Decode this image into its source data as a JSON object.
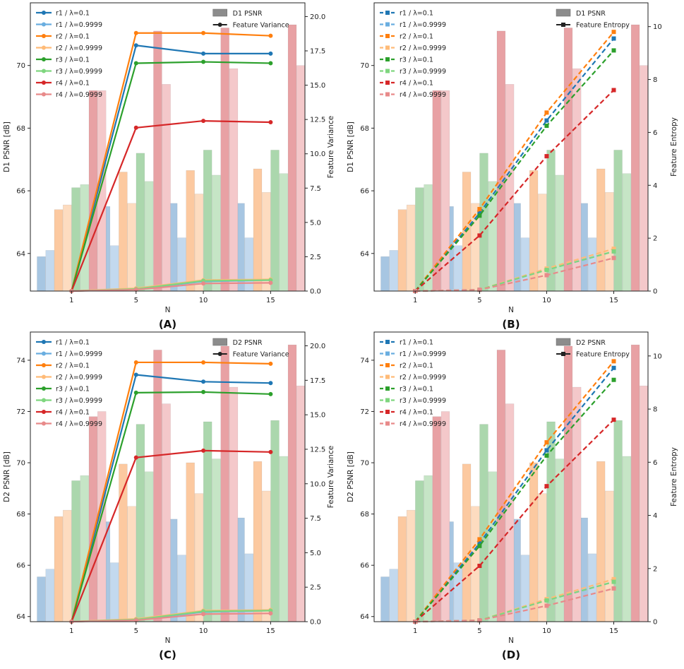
{
  "figure": {
    "title": ""
  },
  "chart_data": [
    {
      "panel_label": "(A)",
      "type": "bar+line",
      "left_metric": "D1",
      "right_kind": "variance",
      "xlabel": "N",
      "ylabel": "D1 PSNR [dB]",
      "ylabel_right": "Feature Variance",
      "categories": [
        "1",
        "5",
        "10",
        "15"
      ],
      "ylim": [
        62.8,
        72.0
      ],
      "yticks": [
        64,
        66,
        68,
        70
      ],
      "ylim_right": [
        0,
        21
      ],
      "yticks_right": [
        "0.0",
        "2.5",
        "5.0",
        "7.5",
        "10.0",
        "12.5",
        "15.0",
        "17.5",
        "20.0"
      ],
      "legend_left": [
        "r1 / λ=0.1",
        "r1 / λ=0.9999",
        "r2 / λ=0.1",
        "r2 / λ=0.9999",
        "r3 / λ=0.1",
        "r3 / λ=0.9999",
        "r4 / λ=0.1",
        "r4 / λ=0.9999"
      ],
      "legend_right": [
        "D1 PSNR",
        "Feature Variance"
      ],
      "bar_series": [
        {
          "name": "r1 / λ=0.1",
          "values": [
            63.9,
            65.5,
            65.6,
            65.6
          ]
        },
        {
          "name": "r1 / λ=0.9999",
          "values": [
            64.1,
            64.25,
            64.5,
            64.5
          ]
        },
        {
          "name": "r2 / λ=0.1",
          "values": [
            65.4,
            66.6,
            66.65,
            66.7
          ]
        },
        {
          "name": "r2 / λ=0.9999",
          "values": [
            65.55,
            65.6,
            65.9,
            65.95
          ]
        },
        {
          "name": "r3 / λ=0.1",
          "values": [
            66.1,
            67.2,
            67.3,
            67.3
          ]
        },
        {
          "name": "r3 / λ=0.9999",
          "values": [
            66.2,
            66.3,
            66.5,
            66.55
          ]
        },
        {
          "name": "r4 / λ=0.1",
          "values": [
            69.2,
            71.1,
            71.2,
            71.3
          ]
        },
        {
          "name": "r4 / λ=0.9999",
          "values": [
            69.2,
            69.4,
            69.9,
            70.0
          ]
        }
      ],
      "line_series": [
        {
          "name": "r1 / λ=0.1",
          "values": [
            0,
            17.9,
            17.3,
            17.3
          ]
        },
        {
          "name": "r1 / λ=0.9999",
          "values": [
            0,
            0.15,
            0.7,
            0.8
          ]
        },
        {
          "name": "r2 / λ=0.1",
          "values": [
            0,
            18.8,
            18.8,
            18.6
          ]
        },
        {
          "name": "r2 / λ=0.9999",
          "values": [
            0,
            0.2,
            0.8,
            0.85
          ]
        },
        {
          "name": "r3 / λ=0.1",
          "values": [
            0,
            16.6,
            16.7,
            16.6
          ]
        },
        {
          "name": "r3 / λ=0.9999",
          "values": [
            0,
            0.15,
            0.75,
            0.8
          ]
        },
        {
          "name": "r4 / λ=0.1",
          "values": [
            0,
            11.9,
            12.4,
            12.3
          ]
        },
        {
          "name": "r4 / λ=0.9999",
          "values": [
            0,
            0.1,
            0.55,
            0.6
          ]
        }
      ]
    },
    {
      "panel_label": "(B)",
      "type": "bar+line",
      "left_metric": "D1",
      "right_kind": "entropy",
      "xlabel": "N",
      "ylabel": "D1 PSNR [dB]",
      "ylabel_right": "Feature Entropy",
      "categories": [
        "1",
        "5",
        "10",
        "15"
      ],
      "ylim": [
        62.8,
        72.0
      ],
      "yticks": [
        64,
        66,
        68,
        70
      ],
      "ylim_right": [
        0,
        10.9
      ],
      "yticks_right": [
        "0",
        "2",
        "4",
        "6",
        "8",
        "10"
      ],
      "legend_left": [
        "r1 / λ=0.1",
        "r1 / λ=0.9999",
        "r2 / λ=0.1",
        "r2 / λ=0.9999",
        "r3 / λ=0.1",
        "r3 / λ=0.9999",
        "r4 / λ=0.1",
        "r4 / λ=0.9999"
      ],
      "legend_right": [
        "D1 PSNR",
        "Feature Entropy"
      ],
      "bar_series": [
        {
          "name": "r1 / λ=0.1",
          "values": [
            63.9,
            65.5,
            65.6,
            65.6
          ]
        },
        {
          "name": "r1 / λ=0.9999",
          "values": [
            64.1,
            64.25,
            64.5,
            64.5
          ]
        },
        {
          "name": "r2 / λ=0.1",
          "values": [
            65.4,
            66.6,
            66.65,
            66.7
          ]
        },
        {
          "name": "r2 / λ=0.9999",
          "values": [
            65.55,
            65.6,
            65.9,
            65.95
          ]
        },
        {
          "name": "r3 / λ=0.1",
          "values": [
            66.1,
            67.2,
            67.3,
            67.3
          ]
        },
        {
          "name": "r3 / λ=0.9999",
          "values": [
            66.2,
            66.3,
            66.5,
            66.55
          ]
        },
        {
          "name": "r4 / λ=0.1",
          "values": [
            69.2,
            71.1,
            71.2,
            71.3
          ]
        },
        {
          "name": "r4 / λ=0.9999",
          "values": [
            69.2,
            69.4,
            69.9,
            70.0
          ]
        }
      ],
      "line_series": [
        {
          "name": "r1 / λ=0.1",
          "values": [
            0,
            2.95,
            6.45,
            9.55
          ]
        },
        {
          "name": "r1 / λ=0.9999",
          "values": [
            0,
            0.05,
            0.8,
            1.5
          ]
        },
        {
          "name": "r2 / λ=0.1",
          "values": [
            0,
            3.1,
            6.75,
            9.8
          ]
        },
        {
          "name": "r2 / λ=0.9999",
          "values": [
            0,
            0.05,
            0.85,
            1.6
          ]
        },
        {
          "name": "r3 / λ=0.1",
          "values": [
            0,
            2.85,
            6.25,
            9.1
          ]
        },
        {
          "name": "r3 / λ=0.9999",
          "values": [
            0,
            0.05,
            0.8,
            1.5
          ]
        },
        {
          "name": "r4 / λ=0.1",
          "values": [
            0,
            2.1,
            5.1,
            7.6
          ]
        },
        {
          "name": "r4 / λ=0.9999",
          "values": [
            0,
            0.05,
            0.6,
            1.25
          ]
        }
      ]
    },
    {
      "panel_label": "(C)",
      "type": "bar+line",
      "left_metric": "D2",
      "right_kind": "variance",
      "xlabel": "N",
      "ylabel": "D2 PSNR [dB]",
      "ylabel_right": "Feature Variance",
      "categories": [
        "1",
        "5",
        "10",
        "15"
      ],
      "ylim": [
        63.8,
        75.1
      ],
      "yticks": [
        64,
        66,
        68,
        70,
        72,
        74
      ],
      "ylim_right": [
        0,
        21
      ],
      "yticks_right": [
        "0.0",
        "2.5",
        "5.0",
        "7.5",
        "10.0",
        "12.5",
        "15.0",
        "17.5",
        "20.0"
      ],
      "legend_left": [
        "r1 / λ=0.1",
        "r1 / λ=0.9999",
        "r2 / λ=0.1",
        "r2 / λ=0.9999",
        "r3 / λ=0.1",
        "r3 / λ=0.9999",
        "r4 / λ=0.1",
        "r4 / λ=0.9999"
      ],
      "legend_right": [
        "D2 PSNR",
        "Feature Variance"
      ],
      "bar_series": [
        {
          "name": "r1 / λ=0.1",
          "values": [
            65.55,
            67.7,
            67.8,
            67.85
          ]
        },
        {
          "name": "r1 / λ=0.9999",
          "values": [
            65.85,
            66.1,
            66.4,
            66.45
          ]
        },
        {
          "name": "r2 / λ=0.1",
          "values": [
            67.9,
            69.95,
            70.0,
            70.05
          ]
        },
        {
          "name": "r2 / λ=0.9999",
          "values": [
            68.15,
            68.3,
            68.8,
            68.9
          ]
        },
        {
          "name": "r3 / λ=0.1",
          "values": [
            69.3,
            71.5,
            71.6,
            71.65
          ]
        },
        {
          "name": "r3 / λ=0.9999",
          "values": [
            69.5,
            69.65,
            70.15,
            70.25
          ]
        },
        {
          "name": "r4 / λ=0.1",
          "values": [
            71.8,
            74.4,
            74.55,
            74.6
          ]
        },
        {
          "name": "r4 / λ=0.9999",
          "values": [
            72.0,
            72.3,
            72.95,
            73.0
          ]
        }
      ],
      "line_series": [
        {
          "name": "r1 / λ=0.1",
          "values": [
            0,
            17.9,
            17.4,
            17.3
          ]
        },
        {
          "name": "r1 / λ=0.9999",
          "values": [
            0,
            0.15,
            0.7,
            0.8
          ]
        },
        {
          "name": "r2 / λ=0.1",
          "values": [
            0,
            18.8,
            18.8,
            18.7
          ]
        },
        {
          "name": "r2 / λ=0.9999",
          "values": [
            0,
            0.2,
            0.8,
            0.85
          ]
        },
        {
          "name": "r3 / λ=0.1",
          "values": [
            0,
            16.6,
            16.65,
            16.5
          ]
        },
        {
          "name": "r3 / λ=0.9999",
          "values": [
            0,
            0.15,
            0.75,
            0.8
          ]
        },
        {
          "name": "r4 / λ=0.1",
          "values": [
            0,
            11.9,
            12.4,
            12.3
          ]
        },
        {
          "name": "r4 / λ=0.9999",
          "values": [
            0,
            0.1,
            0.55,
            0.6
          ]
        }
      ]
    },
    {
      "panel_label": "(D)",
      "type": "bar+line",
      "left_metric": "D2",
      "right_kind": "entropy",
      "xlabel": "N",
      "ylabel": "D2 PSNR [dB]",
      "ylabel_right": "Feature Entropy",
      "categories": [
        "1",
        "5",
        "10",
        "15"
      ],
      "ylim": [
        63.8,
        75.1
      ],
      "yticks": [
        64,
        66,
        68,
        70,
        72,
        74
      ],
      "ylim_right": [
        0,
        10.9
      ],
      "yticks_right": [
        "0",
        "2",
        "4",
        "6",
        "8",
        "10"
      ],
      "legend_left": [
        "r1 / λ=0.1",
        "r1 / λ=0.9999",
        "r2 / λ=0.1",
        "r2 / λ=0.9999",
        "r3 / λ=0.1",
        "r3 / λ=0.9999",
        "r4 / λ=0.1",
        "r4 / λ=0.9999"
      ],
      "legend_right": [
        "D2 PSNR",
        "Feature Entropy"
      ],
      "bar_series": [
        {
          "name": "r1 / λ=0.1",
          "values": [
            65.55,
            67.7,
            67.8,
            67.85
          ]
        },
        {
          "name": "r1 / λ=0.9999",
          "values": [
            65.85,
            66.1,
            66.4,
            66.45
          ]
        },
        {
          "name": "r2 / λ=0.1",
          "values": [
            67.9,
            69.95,
            70.0,
            70.05
          ]
        },
        {
          "name": "r2 / λ=0.9999",
          "values": [
            68.15,
            68.3,
            68.8,
            68.9
          ]
        },
        {
          "name": "r3 / λ=0.1",
          "values": [
            69.3,
            71.5,
            71.6,
            71.65
          ]
        },
        {
          "name": "r3 / λ=0.9999",
          "values": [
            69.5,
            69.65,
            70.15,
            70.25
          ]
        },
        {
          "name": "r4 / λ=0.1",
          "values": [
            71.8,
            74.4,
            74.55,
            74.6
          ]
        },
        {
          "name": "r4 / λ=0.9999",
          "values": [
            72.0,
            72.3,
            72.95,
            73.0
          ]
        }
      ],
      "line_series": [
        {
          "name": "r1 / λ=0.1",
          "values": [
            0,
            2.95,
            6.45,
            9.55
          ]
        },
        {
          "name": "r1 / λ=0.9999",
          "values": [
            0,
            0.05,
            0.8,
            1.5
          ]
        },
        {
          "name": "r2 / λ=0.1",
          "values": [
            0,
            3.1,
            6.75,
            9.8
          ]
        },
        {
          "name": "r2 / λ=0.9999",
          "values": [
            0,
            0.05,
            0.85,
            1.6
          ]
        },
        {
          "name": "r3 / λ=0.1",
          "values": [
            0,
            2.85,
            6.25,
            9.1
          ]
        },
        {
          "name": "r3 / λ=0.9999",
          "values": [
            0,
            0.05,
            0.8,
            1.5
          ]
        },
        {
          "name": "r4 / λ=0.1",
          "values": [
            0,
            2.1,
            5.1,
            7.6
          ]
        },
        {
          "name": "r4 / λ=0.9999",
          "values": [
            0,
            0.05,
            0.6,
            1.25
          ]
        }
      ]
    }
  ],
  "style": {
    "series_colors": [
      "#1f77b4",
      "#6aaee0",
      "#ff7f0e",
      "#ffbb78",
      "#2ca02c",
      "#7fd67f",
      "#d62728",
      "#e88a8a"
    ],
    "bar_colors": [
      "#a7c6e2",
      "#c3d9ee",
      "#fcc9a0",
      "#fddcc0",
      "#abd7ad",
      "#c6e5c6",
      "#e8a1a4",
      "#f4c8ca"
    ],
    "axis_color": "#222222",
    "legend_swatch_gray": "#8c8c8c"
  }
}
